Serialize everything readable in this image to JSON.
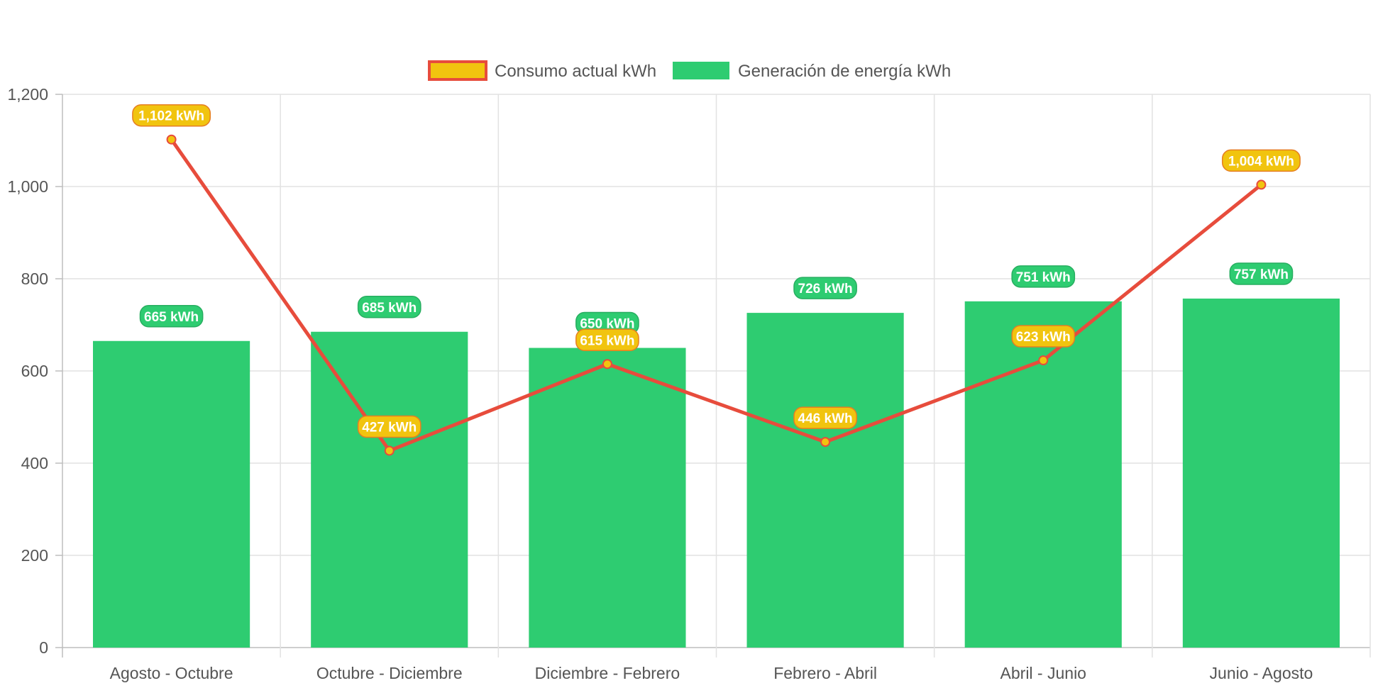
{
  "chart_data": {
    "type": "bar",
    "categories": [
      "Agosto - Octubre",
      "Octubre - Diciembre",
      "Diciembre - Febrero",
      "Febrero - Abril",
      "Abril - Junio",
      "Junio - Agosto"
    ],
    "series": [
      {
        "name": "Consumo actual kWh",
        "type": "line",
        "values": [
          1102,
          427,
          615,
          446,
          623,
          1004
        ],
        "labels": [
          "1,102 kWh",
          "427 kWh",
          "615 kWh",
          "446 kWh",
          "623 kWh",
          "1,004 kWh"
        ],
        "color": "#e74c3c",
        "fill": "#f1c40f"
      },
      {
        "name": "Generación de energía kWh",
        "type": "bar",
        "values": [
          665,
          685,
          650,
          726,
          751,
          757
        ],
        "labels": [
          "665 kWh",
          "685 kWh",
          "650 kWh",
          "726 kWh",
          "751 kWh",
          "757 kWh"
        ],
        "color": "#2ecc71"
      }
    ],
    "yticks": [
      "0",
      "200",
      "400",
      "600",
      "800",
      "1,000",
      "1,200"
    ],
    "ylim": [
      0,
      1200
    ],
    "grid": true,
    "legend_position": "top"
  }
}
